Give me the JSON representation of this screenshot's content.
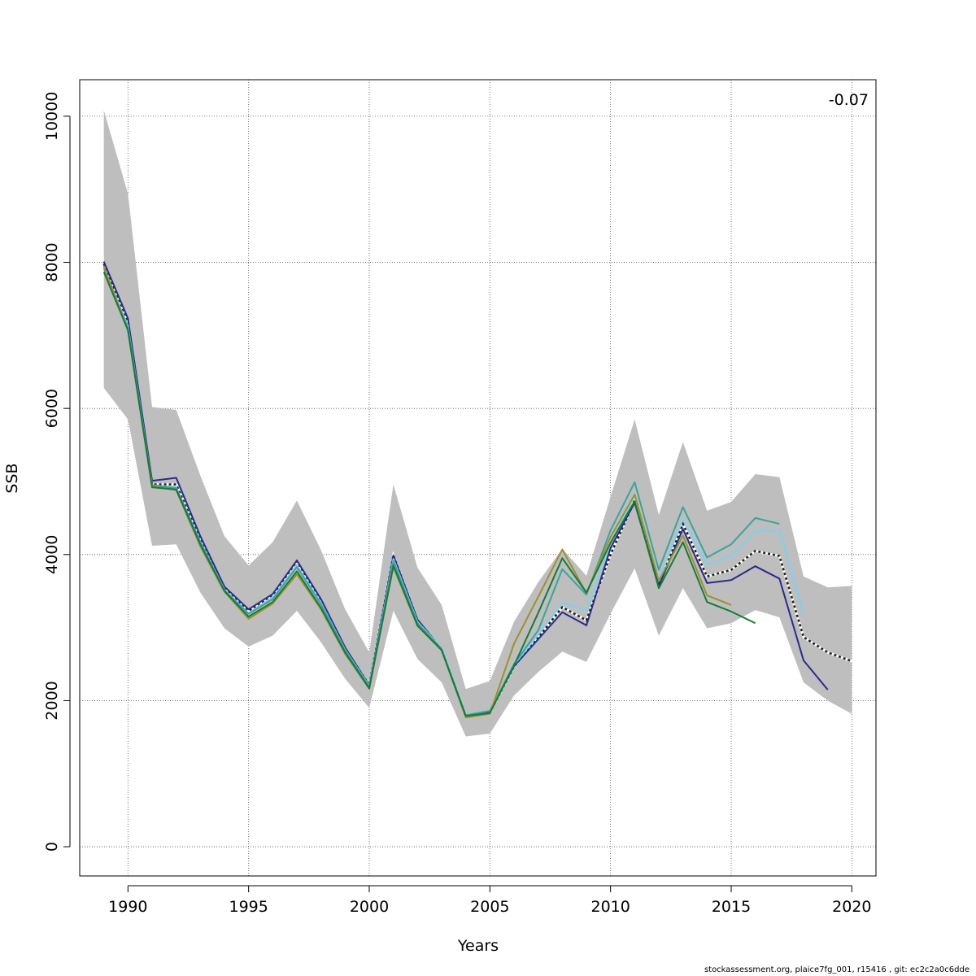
{
  "chart_data": {
    "type": "line",
    "xlabel": "Years",
    "ylabel": "SSB",
    "xlim": [
      1988,
      2021
    ],
    "ylim": [
      -400,
      10500
    ],
    "x_ticks": [
      1990,
      1995,
      2000,
      2005,
      2010,
      2015,
      2020
    ],
    "y_ticks": [
      0,
      2000,
      4000,
      6000,
      8000,
      10000
    ],
    "grid": true,
    "annotation": "-0.07",
    "band": {
      "color": "#bebebe",
      "x": [
        1989,
        1990,
        1991,
        1992,
        1993,
        1994,
        1995,
        1996,
        1997,
        1998,
        1999,
        2000,
        2001,
        2002,
        2003,
        2004,
        2005,
        2006,
        2007,
        2008,
        2009,
        2010,
        2011,
        2012,
        2013,
        2014,
        2015,
        2016,
        2017,
        2018,
        2019,
        2020
      ],
      "lower": [
        6280,
        5850,
        4120,
        4140,
        3480,
        2990,
        2740,
        2890,
        3230,
        2800,
        2300,
        1900,
        3230,
        2570,
        2250,
        1510,
        1550,
        2070,
        2390,
        2670,
        2530,
        3190,
        3810,
        2890,
        3540,
        2990,
        3060,
        3240,
        3140,
        2250,
        2000,
        1820
      ],
      "upper": [
        10080,
        8940,
        6020,
        5980,
        5080,
        4250,
        3850,
        4170,
        4740,
        4060,
        3250,
        2660,
        4960,
        3820,
        3310,
        2160,
        2270,
        3080,
        3620,
        4080,
        3710,
        4790,
        5850,
        4540,
        5540,
        4600,
        4720,
        5100,
        5060,
        3700,
        3550,
        3570
      ]
    },
    "series": [
      {
        "color": "#222222",
        "dashed": true,
        "x": [
          1989,
          1990,
          1991,
          1992,
          1993,
          1994,
          1995,
          1996,
          1997,
          1998,
          1999,
          2000,
          2001,
          2002,
          2003,
          2004,
          2005,
          2006,
          2007,
          2008,
          2009,
          2010,
          2011,
          2012,
          2013,
          2014,
          2015,
          2016,
          2017,
          2018,
          2019,
          2020
        ],
        "values": [
          7980,
          7200,
          4960,
          4960,
          4200,
          3530,
          3230,
          3450,
          3910,
          3370,
          2720,
          2210,
          3990,
          3100,
          2710,
          1800,
          1840,
          2470,
          2860,
          3280,
          3100,
          4000,
          4740,
          3580,
          4420,
          3700,
          3790,
          4050,
          3980,
          2870,
          2660,
          2540
        ]
      },
      {
        "color": "#2b2b8a",
        "x": [
          1989,
          1990,
          1991,
          1992,
          1993,
          1994,
          1995,
          1996,
          1997,
          1998,
          1999,
          2000,
          2001,
          2002,
          2003,
          2004,
          2005,
          2006,
          2007,
          2008,
          2009,
          2010,
          2011,
          2012,
          2013,
          2014,
          2015,
          2016,
          2017,
          2018,
          2019
        ],
        "values": [
          8010,
          7230,
          5010,
          5050,
          4250,
          3560,
          3250,
          3460,
          3920,
          3390,
          2730,
          2210,
          3990,
          3110,
          2710,
          1790,
          1850,
          2470,
          2840,
          3210,
          3030,
          4090,
          4710,
          3570,
          4350,
          3610,
          3650,
          3840,
          3670,
          2550,
          2150
        ]
      },
      {
        "color": "#7fd0f0",
        "x": [
          1989,
          1990,
          1991,
          1992,
          1993,
          1994,
          1995,
          1996,
          1997,
          1998,
          1999,
          2000,
          2001,
          2002,
          2003,
          2004,
          2005,
          2006,
          2007,
          2008,
          2009,
          2010,
          2011,
          2012,
          2013,
          2014,
          2015,
          2016,
          2017,
          2018
        ],
        "values": [
          7930,
          7130,
          4950,
          4920,
          4180,
          3520,
          3200,
          3410,
          3850,
          3340,
          2700,
          2200,
          3940,
          3080,
          2720,
          1810,
          1860,
          2490,
          2900,
          3340,
          3240,
          4160,
          4800,
          3660,
          4480,
          3860,
          3980,
          4330,
          4320,
          3180
        ]
      },
      {
        "color": "#3ba49c",
        "x": [
          1989,
          1990,
          1991,
          1992,
          1993,
          1994,
          1995,
          1996,
          1997,
          1998,
          1999,
          2000,
          2001,
          2002,
          2003,
          2004,
          2005,
          2006,
          2007,
          2008,
          2009,
          2010,
          2011,
          2012,
          2013,
          2014,
          2015,
          2016,
          2017
        ],
        "values": [
          7920,
          7100,
          4950,
          4910,
          4170,
          3510,
          3190,
          3390,
          3830,
          3320,
          2690,
          2190,
          3910,
          3060,
          2710,
          1800,
          1860,
          2500,
          2960,
          3800,
          3450,
          4330,
          4990,
          3790,
          4650,
          3960,
          4140,
          4500,
          4420
        ]
      },
      {
        "color": "#9b9131",
        "x": [
          1989,
          1990,
          1991,
          1992,
          1993,
          1994,
          1995,
          1996,
          1997,
          1998,
          1999,
          2000,
          2001,
          2002,
          2003,
          2004,
          2005,
          2006,
          2007,
          2008,
          2009,
          2010,
          2011,
          2012,
          2013,
          2014,
          2015
        ],
        "values": [
          7950,
          7070,
          4940,
          4880,
          4110,
          3490,
          3120,
          3330,
          3730,
          3250,
          2640,
          2160,
          3830,
          3020,
          2690,
          1770,
          1820,
          2780,
          3420,
          4070,
          3470,
          4240,
          4820,
          3640,
          4260,
          3440,
          3310
        ]
      },
      {
        "color": "#177a3a",
        "x": [
          1989,
          1990,
          1991,
          1992,
          1993,
          1994,
          1995,
          1996,
          1997,
          1998,
          1999,
          2000,
          2001,
          2002,
          2003,
          2004,
          2005,
          2006,
          2007,
          2008,
          2009,
          2010,
          2011,
          2012,
          2013,
          2014,
          2015,
          2016
        ],
        "values": [
          7870,
          7070,
          4920,
          4890,
          4140,
          3500,
          3150,
          3350,
          3770,
          3270,
          2660,
          2170,
          3850,
          3030,
          2690,
          1790,
          1830,
          2480,
          3200,
          3950,
          3480,
          4160,
          4730,
          3540,
          4170,
          3350,
          3220,
          3060
        ]
      }
    ]
  },
  "footer": "stockassessment.org, plaice7fg_001, r15416 , git: ec2c2a0c6dde"
}
